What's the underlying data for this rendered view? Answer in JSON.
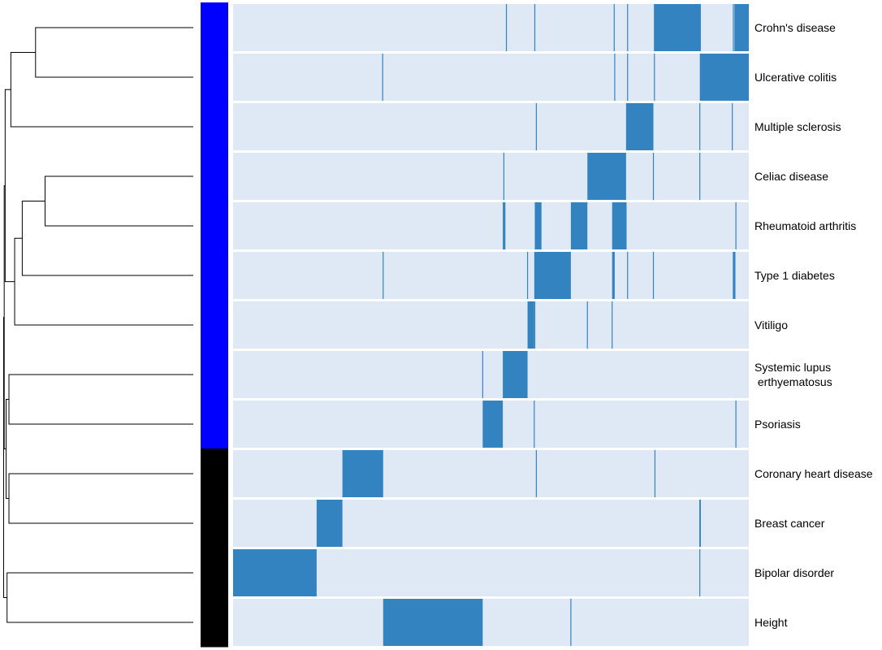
{
  "chart_data": {
    "type": "heatmap",
    "title": "",
    "xlabel": "",
    "ylabel": "",
    "x_range": [
      0,
      1
    ],
    "grid": false,
    "legend": "none",
    "colors": {
      "background": "#dfe9f6",
      "highlight": "#3383c1",
      "group_autoimmune": "#0000ff",
      "group_other": "#000000",
      "dendrogram": "#000000"
    },
    "rows": [
      {
        "label": "Crohn's disease",
        "group": "autoimmune",
        "blocks": [
          [
            0.816,
            0.907
          ],
          [
            0.972,
            1.0
          ]
        ],
        "lines": [
          0.53,
          0.585,
          0.739,
          0.765,
          0.97
        ]
      },
      {
        "label": "Ulcerative colitis",
        "group": "autoimmune",
        "blocks": [
          [
            0.905,
            1.0
          ]
        ],
        "lines": [
          0.29,
          0.74,
          0.765,
          0.817
        ]
      },
      {
        "label": "Multiple sclerosis",
        "group": "autoimmune",
        "blocks": [
          [
            0.762,
            0.815
          ]
        ],
        "lines": [
          0.588,
          0.905,
          0.968
        ]
      },
      {
        "label": "Celiac disease",
        "group": "autoimmune",
        "blocks": [
          [
            0.687,
            0.762
          ]
        ],
        "lines": [
          0.525,
          0.815,
          0.905
        ]
      },
      {
        "label": "Rheumatoid arthritis",
        "group": "autoimmune",
        "blocks": [
          [
            0.523,
            0.528
          ],
          [
            0.585,
            0.598
          ],
          [
            0.655,
            0.687
          ],
          [
            0.735,
            0.763
          ]
        ],
        "lines": [
          0.975
        ]
      },
      {
        "label": "Type 1 diabetes",
        "group": "autoimmune",
        "blocks": [
          [
            0.584,
            0.655
          ],
          [
            0.735,
            0.74
          ],
          [
            0.969,
            0.974
          ]
        ],
        "lines": [
          0.291,
          0.571,
          0.765,
          0.815
        ]
      },
      {
        "label": "Vitiligo",
        "group": "autoimmune",
        "blocks": [
          [
            0.571,
            0.584
          ]
        ],
        "lines": [
          0.585,
          0.687,
          0.735
        ]
      },
      {
        "label": "Systemic lupus\n erthyematosus",
        "group": "autoimmune",
        "blocks": [
          [
            0.523,
            0.571
          ]
        ],
        "lines": [
          0.484
        ]
      },
      {
        "label": "Psoriasis",
        "group": "autoimmune",
        "blocks": [
          [
            0.484,
            0.523
          ]
        ],
        "lines": [
          0.584,
          0.975
        ]
      },
      {
        "label": "Coronary heart disease",
        "group": "other",
        "blocks": [
          [
            0.212,
            0.291
          ]
        ],
        "lines": [
          0.588,
          0.818
        ]
      },
      {
        "label": "Breast cancer",
        "group": "other",
        "blocks": [
          [
            0.162,
            0.212
          ],
          [
            0.904,
            0.907
          ]
        ],
        "lines": []
      },
      {
        "label": "Bipolar disorder",
        "group": "other",
        "blocks": [
          [
            0.0,
            0.162
          ]
        ],
        "lines": [
          0.905
        ]
      },
      {
        "label": "Height",
        "group": "other",
        "blocks": [
          [
            0.291,
            0.484
          ]
        ],
        "lines": [
          0.655
        ]
      }
    ],
    "dendrogram": [
      {
        "a": 0,
        "b": 1,
        "h": 0.83
      },
      {
        "a": 3,
        "b": 4,
        "h": 0.78
      },
      {
        "a": "m1",
        "b": 5,
        "h": 0.9
      },
      {
        "a": "m0",
        "b": 2,
        "h": 0.96
      },
      {
        "a": "m2",
        "b": 6,
        "h": 0.94
      },
      {
        "a": "m3",
        "b": "m4",
        "h": 0.99
      },
      {
        "a": 7,
        "b": 8,
        "h": 0.97
      },
      {
        "a": 9,
        "b": 10,
        "h": 0.97
      },
      {
        "a": "m6",
        "b": "m7",
        "h": 0.985
      },
      {
        "a": "m5",
        "b": "m8",
        "h": 0.995
      },
      {
        "a": 11,
        "b": 12,
        "h": 0.98
      },
      {
        "a": "m9",
        "b": "m10",
        "h": 0.998
      }
    ]
  }
}
